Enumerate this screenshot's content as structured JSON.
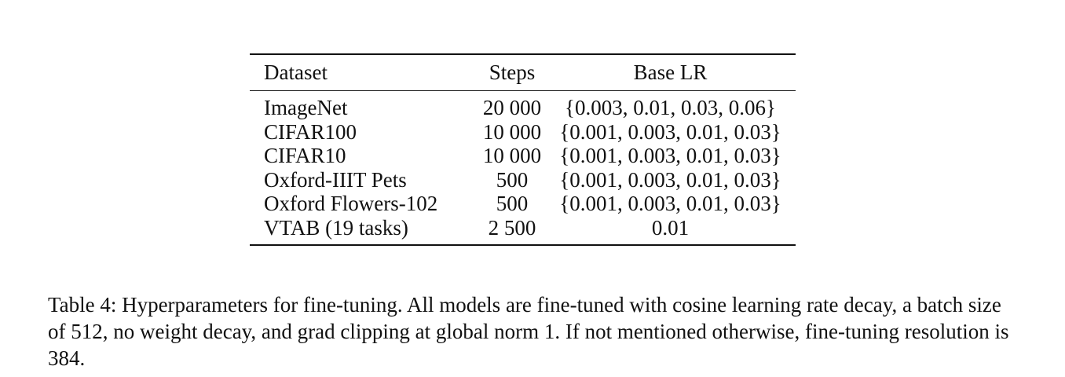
{
  "table": {
    "headers": [
      "Dataset",
      "Steps",
      "Base LR"
    ],
    "rows": [
      [
        "ImageNet",
        "20 000",
        "{0.003, 0.01, 0.03, 0.06}"
      ],
      [
        "CIFAR100",
        "10 000",
        "{0.001, 0.003, 0.01, 0.03}"
      ],
      [
        "CIFAR10",
        "10 000",
        "{0.001, 0.003, 0.01, 0.03}"
      ],
      [
        "Oxford-IIIT Pets",
        "500",
        "{0.001, 0.003, 0.01, 0.03}"
      ],
      [
        "Oxford Flowers-102",
        "500",
        "{0.001, 0.003, 0.01, 0.03}"
      ],
      [
        "VTAB (19 tasks)",
        "2 500",
        "0.01"
      ]
    ]
  },
  "caption": {
    "text": "Table 4: Hyperparameters for fine-tuning. All models are fine-tuned with cosine learning rate decay, a batch size of 512, no weight decay, and grad clipping at global norm 1. If not mentioned otherwise, fine-tuning resolution is 384."
  }
}
